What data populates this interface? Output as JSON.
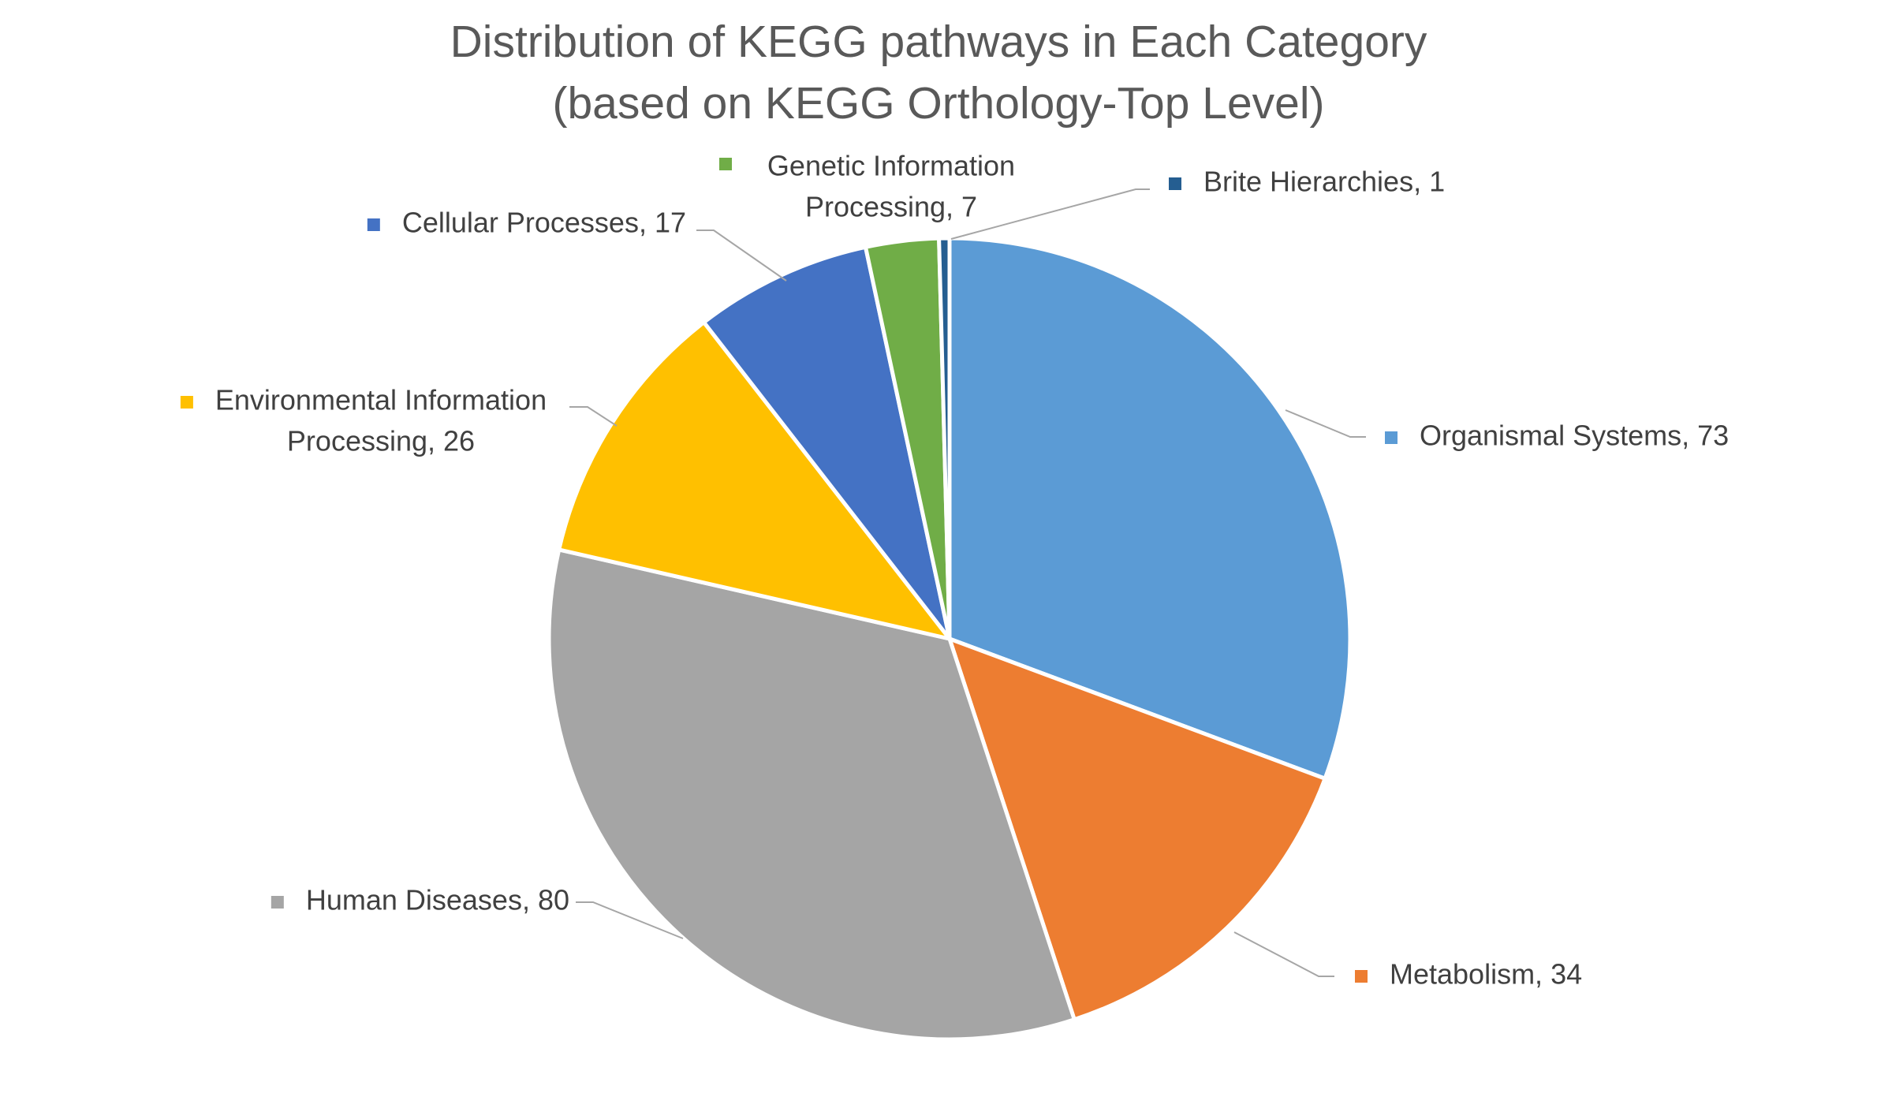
{
  "chart_data": {
    "type": "pie",
    "title": "Distribution of KEGG pathways in Each Category (based on KEGG Orthology-Top Level)",
    "title_lines": [
      "Distribution of KEGG pathways in Each Category",
      "(based on KEGG Orthology-Top Level)"
    ],
    "start_angle_deg": 0,
    "direction": "clockwise",
    "legend": "none",
    "slices": [
      {
        "label": "Organismal Systems",
        "value": 73,
        "color": "#5B9BD5",
        "data_label": "Organismal Systems, 73"
      },
      {
        "label": "Metabolism",
        "value": 34,
        "color": "#ED7D31",
        "data_label": "Metabolism, 34"
      },
      {
        "label": "Human Diseases",
        "value": 80,
        "color": "#A5A5A5",
        "data_label": "Human Diseases, 80"
      },
      {
        "label": "Environmental Information Processing",
        "value": 26,
        "color": "#FFC000",
        "data_label_lines": [
          "Environmental Information",
          "Processing, 26"
        ]
      },
      {
        "label": "Cellular Processes",
        "value": 17,
        "color": "#4472C4",
        "data_label": "Cellular Processes, 17"
      },
      {
        "label": "Genetic Information Processing",
        "value": 7,
        "color": "#70AD47",
        "data_label_lines": [
          "Genetic Information",
          "Processing, 7"
        ]
      },
      {
        "label": "Brite Hierarchies",
        "value": 1,
        "color": "#255E91",
        "data_label": "Brite Hierarchies, 1"
      }
    ]
  }
}
